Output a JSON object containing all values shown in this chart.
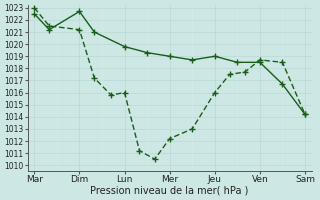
{
  "xlabel": "Pression niveau de la mer( hPa )",
  "background_color": "#cde8e4",
  "grid_color_major": "#b8d8d4",
  "grid_color_minor": "#d4ecea",
  "line_color": "#1a5c1a",
  "ylim": [
    1010,
    1023
  ],
  "yticks": [
    1010,
    1011,
    1012,
    1013,
    1014,
    1015,
    1016,
    1017,
    1018,
    1019,
    1020,
    1021,
    1022,
    1023
  ],
  "x_labels": [
    "Mar",
    "Dim",
    "Lun",
    "Mer",
    "Jeu",
    "Ven",
    "Sam"
  ],
  "x_positions": [
    0,
    1,
    2,
    3,
    4,
    5,
    6
  ],
  "series1_x": [
    0,
    0.33,
    1.0,
    1.33,
    2.0,
    2.5,
    3.0,
    3.5,
    4.0,
    4.5,
    5.0,
    5.5,
    6.0
  ],
  "series1_y": [
    1022.5,
    1021.2,
    1022.7,
    1021.0,
    1019.8,
    1019.3,
    1019.0,
    1018.7,
    1019.0,
    1018.5,
    1018.5,
    1016.7,
    1014.2
  ],
  "series2_x": [
    0,
    0.33,
    1.0,
    1.33,
    1.7,
    2.0,
    2.33,
    2.67,
    3.0,
    3.5,
    4.0,
    4.33,
    4.67,
    5.0,
    5.5,
    6.0
  ],
  "series2_y": [
    1023.0,
    1021.5,
    1021.2,
    1017.2,
    1015.8,
    1016.0,
    1011.2,
    1010.5,
    1012.2,
    1013.0,
    1016.0,
    1017.5,
    1017.7,
    1018.7,
    1018.5,
    1014.2
  ],
  "marker_size": 2.5,
  "line_width": 1.0
}
